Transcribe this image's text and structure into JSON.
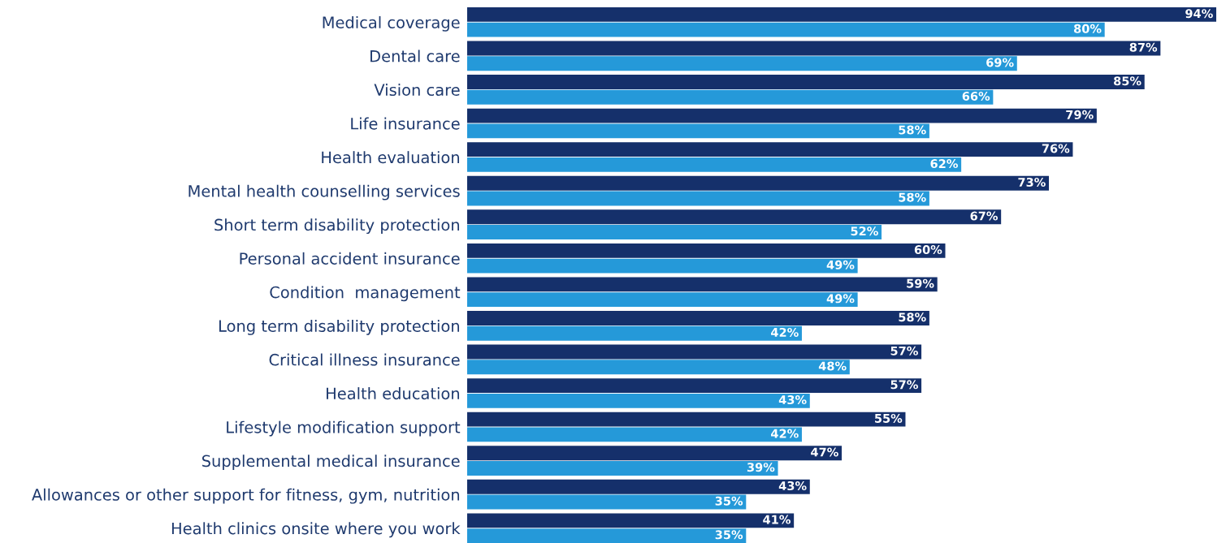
{
  "chart_data": {
    "type": "bar",
    "orientation": "horizontal",
    "tick_labels": "y",
    "grid": false,
    "categories": [
      "Medical coverage",
      "Dental care",
      "Vision care",
      "Life insurance",
      "Health evaluation",
      "Mental health counselling services",
      "Short term disability protection",
      "Personal accident insurance",
      "Condition  management",
      "Long term disability protection",
      "Critical illness insurance",
      "Health education",
      "Lifestyle modification support",
      "Supplemental medical insurance",
      "Allowances or other support for fitness, gym, nutrition",
      "Health clinics onsite where you work"
    ],
    "series": [
      {
        "color": "#15306b",
        "values": [
          94,
          87,
          85,
          79,
          76,
          73,
          67,
          60,
          59,
          58,
          57,
          57,
          55,
          47,
          43,
          41
        ],
        "value_labels": [
          "94%",
          "87%",
          "85%",
          "79%",
          "76%",
          "73%",
          "67%",
          "60%",
          "59%",
          "58%",
          "57%",
          "57%",
          "55%",
          "47%",
          "43%",
          "41%"
        ]
      },
      {
        "color": "#2599d9",
        "values": [
          80,
          69,
          66,
          58,
          62,
          58,
          52,
          49,
          49,
          42,
          48,
          43,
          42,
          39,
          35,
          35
        ],
        "value_labels": [
          "80%",
          "69%",
          "66%",
          "58%",
          "62%",
          "58%",
          "52%",
          "49%",
          "49%",
          "42%",
          "48%",
          "43%",
          "42%",
          "39%",
          "35%",
          "35%"
        ]
      }
    ]
  }
}
